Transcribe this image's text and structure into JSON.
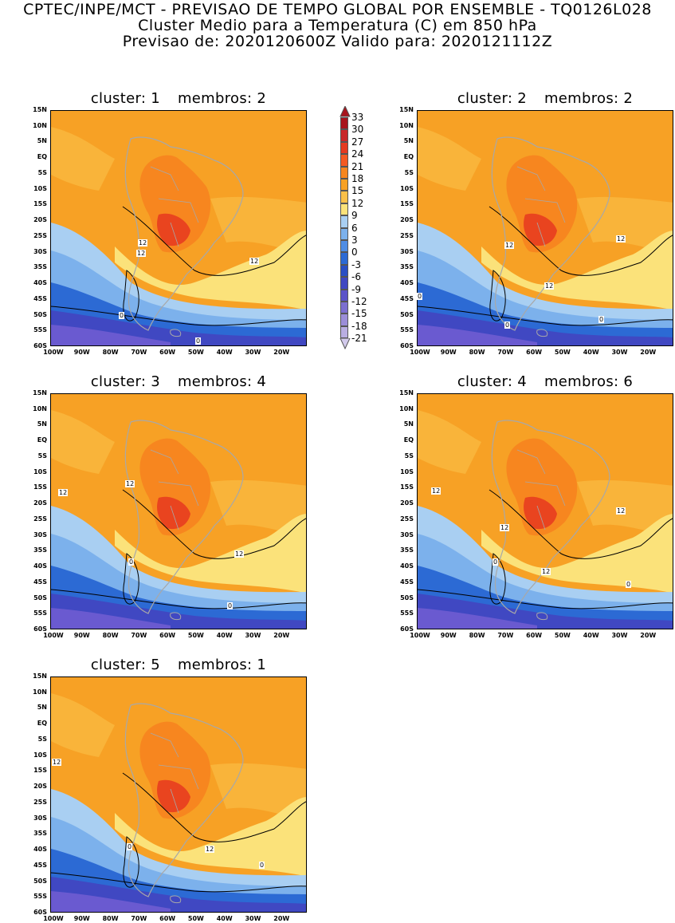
{
  "header": {
    "line1": "CPTEC/INPE/MCT - PREVISAO DE TEMPO GLOBAL POR ENSEMBLE - TQ0126L028",
    "line2": "Cluster Medio para a Temperatura (C) em 850 hPa",
    "line3": "Previsao de: 2020120600Z   Valido para: 2020121112Z"
  },
  "panels": [
    {
      "cluster": "cluster: 1",
      "members": "membros: 2",
      "labels": [
        "12",
        "12",
        "12",
        "0",
        "0"
      ]
    },
    {
      "cluster": "cluster: 2",
      "members": "membros: 2",
      "labels": [
        "12",
        "12",
        "12",
        "0",
        "0",
        "0"
      ]
    },
    {
      "cluster": "cluster: 3",
      "members": "membros: 4",
      "labels": [
        "12",
        "12",
        "12",
        "0",
        "0"
      ]
    },
    {
      "cluster": "cluster: 4",
      "members": "membros: 6",
      "labels": [
        "12",
        "12",
        "12",
        "12",
        "0",
        "0"
      ]
    },
    {
      "cluster": "cluster: 5",
      "members": "membros: 1",
      "labels": [
        "12",
        "12",
        "0",
        "0"
      ]
    }
  ],
  "axes": {
    "lat_labels": [
      "15N",
      "10N",
      "5N",
      "EQ",
      "5S",
      "10S",
      "15S",
      "20S",
      "25S",
      "30S",
      "35S",
      "40S",
      "45S",
      "50S",
      "55S",
      "60S"
    ],
    "lon_labels": [
      "100W",
      "90W",
      "80W",
      "70W",
      "60W",
      "50W",
      "40W",
      "30W",
      "20W"
    ]
  },
  "colorbar": {
    "labels": [
      "33",
      "30",
      "27",
      "24",
      "21",
      "18",
      "15",
      "12",
      "9",
      "6",
      "3",
      "0",
      "-3",
      "-6",
      "-9",
      "-12",
      "-15",
      "-18",
      "-21"
    ],
    "colors": [
      "#a8141c",
      "#c8282a",
      "#e43a20",
      "#f45a22",
      "#f7861f",
      "#f7a125",
      "#f9c04a",
      "#fbe27a",
      "#a9cff2",
      "#7cb1ec",
      "#4f8de4",
      "#2c6ad4",
      "#2a4fc4",
      "#4048c2",
      "#5b53c8",
      "#7c6fd0",
      "#9b8ed8",
      "#b9aee2",
      "#d3cbec"
    ]
  },
  "colors": {
    "warm_bg": "#f7a125",
    "hot": "#f7861f",
    "hottest": "#e9441f",
    "mild": "#fbe27a",
    "cool": "#7cb1ec",
    "cold": "#2c6ad4",
    "colder": "#4048c2",
    "coldest": "#6a5ad0",
    "coast": "#a8a8a8"
  }
}
